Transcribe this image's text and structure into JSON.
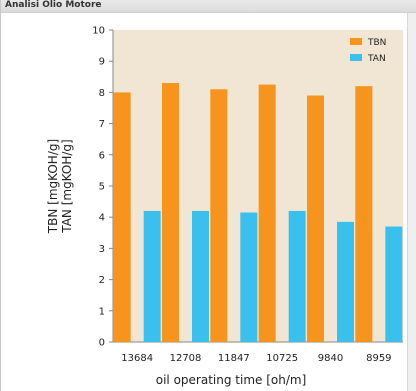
{
  "window": {
    "title": "Analisi Olio Motore"
  },
  "chart_data": {
    "type": "bar",
    "title": "",
    "xlabel": "oil operating time [oh/m]",
    "ylabel_lines": [
      "TBN [mgKOH/g]",
      "TAN [mgKOH/g]"
    ],
    "ylim": [
      0,
      10
    ],
    "yticks": [
      0,
      1,
      2,
      3,
      4,
      5,
      6,
      7,
      8,
      9,
      10
    ],
    "categories": [
      "13684",
      "12708",
      "11847",
      "10725",
      "9840",
      "8959"
    ],
    "series": [
      {
        "name": "TBN",
        "color": "#f7941d",
        "values": [
          8.0,
          8.3,
          8.1,
          8.25,
          7.9,
          8.2
        ]
      },
      {
        "name": "TAN",
        "color": "#39c0ec",
        "values": [
          4.2,
          4.2,
          4.15,
          4.2,
          3.85,
          3.7
        ]
      }
    ],
    "legend": "top-right",
    "grid": false,
    "plot_background": "#f1e6d3"
  }
}
